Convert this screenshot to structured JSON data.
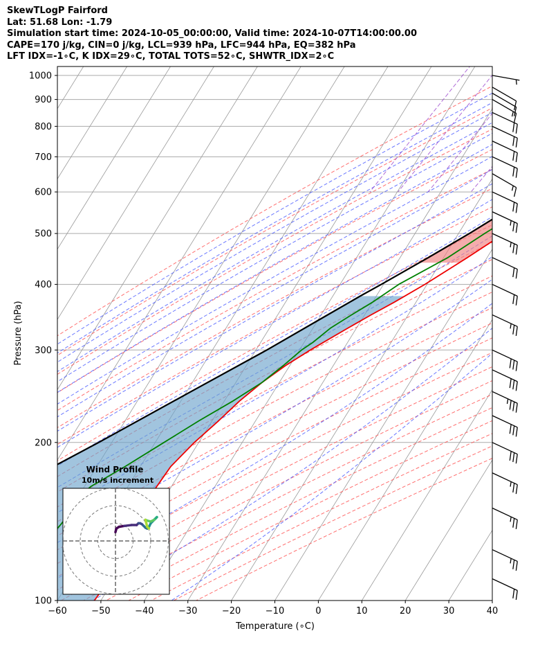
{
  "header": {
    "line1": "SkewTLogP Fairford",
    "line2": "Lat: 51.68   Lon: -1.79",
    "line3": "Simulation start time: 2024-10-05_00:00:00, Valid time: 2024-10-07T14:00:00.00",
    "line4": "CAPE=170 j/kg, CIN=0 j/kg, LCL=939 hPa, LFC=944 hPa, EQ=382 hPa",
    "line5": "LFT IDX=-1∘C, K IDX=29∘C, TOTAL TOTS=52∘C, SHWTR_IDX=2∘C"
  },
  "colors": {
    "temperature": "#ee0000",
    "dewpoint": "#008000",
    "parcel": "#000000",
    "cape_fill": "#6fa5cc",
    "cin_fill": "#f08080",
    "dry_adiabat": "#ff5555",
    "moist_adiabat": "#4455ff",
    "mixing_ratio": "#9944cc",
    "isotherm": "#999999",
    "isobar": "#aaaaaa",
    "hodo_ring": "#777777"
  },
  "chart_data": {
    "type": "skew-t log-p",
    "xlabel": "Temperature (∘C)",
    "ylabel": "Pressure (hPa)",
    "xlim": [
      -60,
      40
    ],
    "ylim": [
      1040,
      100
    ],
    "x_ticks": [
      -60,
      -50,
      -40,
      -30,
      -20,
      -10,
      0,
      10,
      20,
      30,
      40
    ],
    "y_ticks": [
      1000,
      900,
      800,
      700,
      600,
      500,
      400,
      300,
      200,
      100
    ],
    "grid": true,
    "temperature": {
      "pressure": [
        990,
        950,
        900,
        850,
        800,
        750,
        700,
        650,
        600,
        550,
        500,
        450,
        400,
        370,
        350,
        330,
        300,
        280,
        260,
        240,
        220,
        200,
        180,
        160,
        150,
        140,
        130,
        120,
        110,
        100
      ],
      "values": [
        15.5,
        13.5,
        12.0,
        10.5,
        8.5,
        6.5,
        4.0,
        1.0,
        -2.0,
        -5.5,
        -9.5,
        -14.5,
        -20.5,
        -25.0,
        -28.5,
        -32.0,
        -37.5,
        -41.0,
        -44.0,
        -46.5,
        -48.5,
        -51.0,
        -53.0,
        -53.5,
        -53.0,
        -51.5,
        -51.0,
        -51.0,
        -51.0,
        -51.5
      ]
    },
    "dewpoint": {
      "pressure": [
        990,
        950,
        900,
        850,
        800,
        750,
        700,
        650,
        600,
        550,
        500,
        450,
        400,
        370,
        350,
        330,
        310,
        300,
        280,
        260,
        240,
        220,
        200,
        180,
        165,
        160,
        150,
        140,
        130,
        120,
        110,
        100
      ],
      "values": [
        13.0,
        13.0,
        9.0,
        7.5,
        7.0,
        5.5,
        3.0,
        -0.5,
        -4.5,
        -9.0,
        -14.0,
        -19.0,
        -26.5,
        -30.0,
        -33.0,
        -36.0,
        -38.0,
        -39.5,
        -41.5,
        -44.0,
        -48.0,
        -53.0,
        -58.0,
        -63.5,
        -68.5,
        -69.5,
        -69.5,
        -70.0,
        -71.0,
        -72.5,
        -74.0,
        -75.5
      ]
    },
    "parcel": {
      "pressure": [
        990,
        950,
        940,
        900,
        850,
        800,
        750,
        700,
        650,
        600,
        550,
        500,
        450,
        400,
        380,
        350,
        300,
        250,
        200,
        150,
        100
      ],
      "values": [
        16.0,
        13.0,
        12.4,
        10.4,
        8.0,
        5.4,
        2.6,
        -0.5,
        -4.0,
        -8.0,
        -12.5,
        -17.5,
        -23.5,
        -30.5,
        -33.7,
        -38.5,
        -47.5,
        -59.0,
        -73.0,
        -92.0,
        -117.0
      ]
    },
    "wind_barbs": {
      "pressure": [
        1000,
        950,
        925,
        900,
        850,
        800,
        750,
        700,
        650,
        600,
        550,
        500,
        450,
        400,
        350,
        300,
        275,
        250,
        225,
        200,
        175,
        150,
        125,
        110
      ],
      "speed_kt": [
        5,
        10,
        10,
        15,
        20,
        20,
        20,
        20,
        15,
        20,
        25,
        25,
        20,
        20,
        25,
        30,
        30,
        35,
        30,
        30,
        25,
        25,
        25,
        20
      ],
      "direction_deg": [
        260,
        240,
        240,
        240,
        245,
        245,
        245,
        245,
        240,
        245,
        245,
        245,
        245,
        245,
        245,
        245,
        245,
        245,
        245,
        245,
        245,
        245,
        245,
        245
      ]
    },
    "hodograph": {
      "title": "Wind Profile",
      "subtitle": "10m/s increment",
      "rings_ms": [
        10,
        20,
        30
      ],
      "u_ms": [
        0,
        0.5,
        2,
        5,
        9,
        12,
        13,
        14,
        15,
        16,
        17,
        18,
        19,
        20,
        21,
        22,
        23,
        23.5,
        22,
        20,
        18,
        17,
        18,
        19
      ],
      "v_ms": [
        5,
        7,
        8,
        8.5,
        9,
        9,
        10,
        10,
        9.5,
        8.5,
        7.5,
        7,
        8,
        10,
        11,
        12,
        13,
        13.5,
        12,
        11,
        11.5,
        12,
        8,
        7
      ]
    }
  }
}
